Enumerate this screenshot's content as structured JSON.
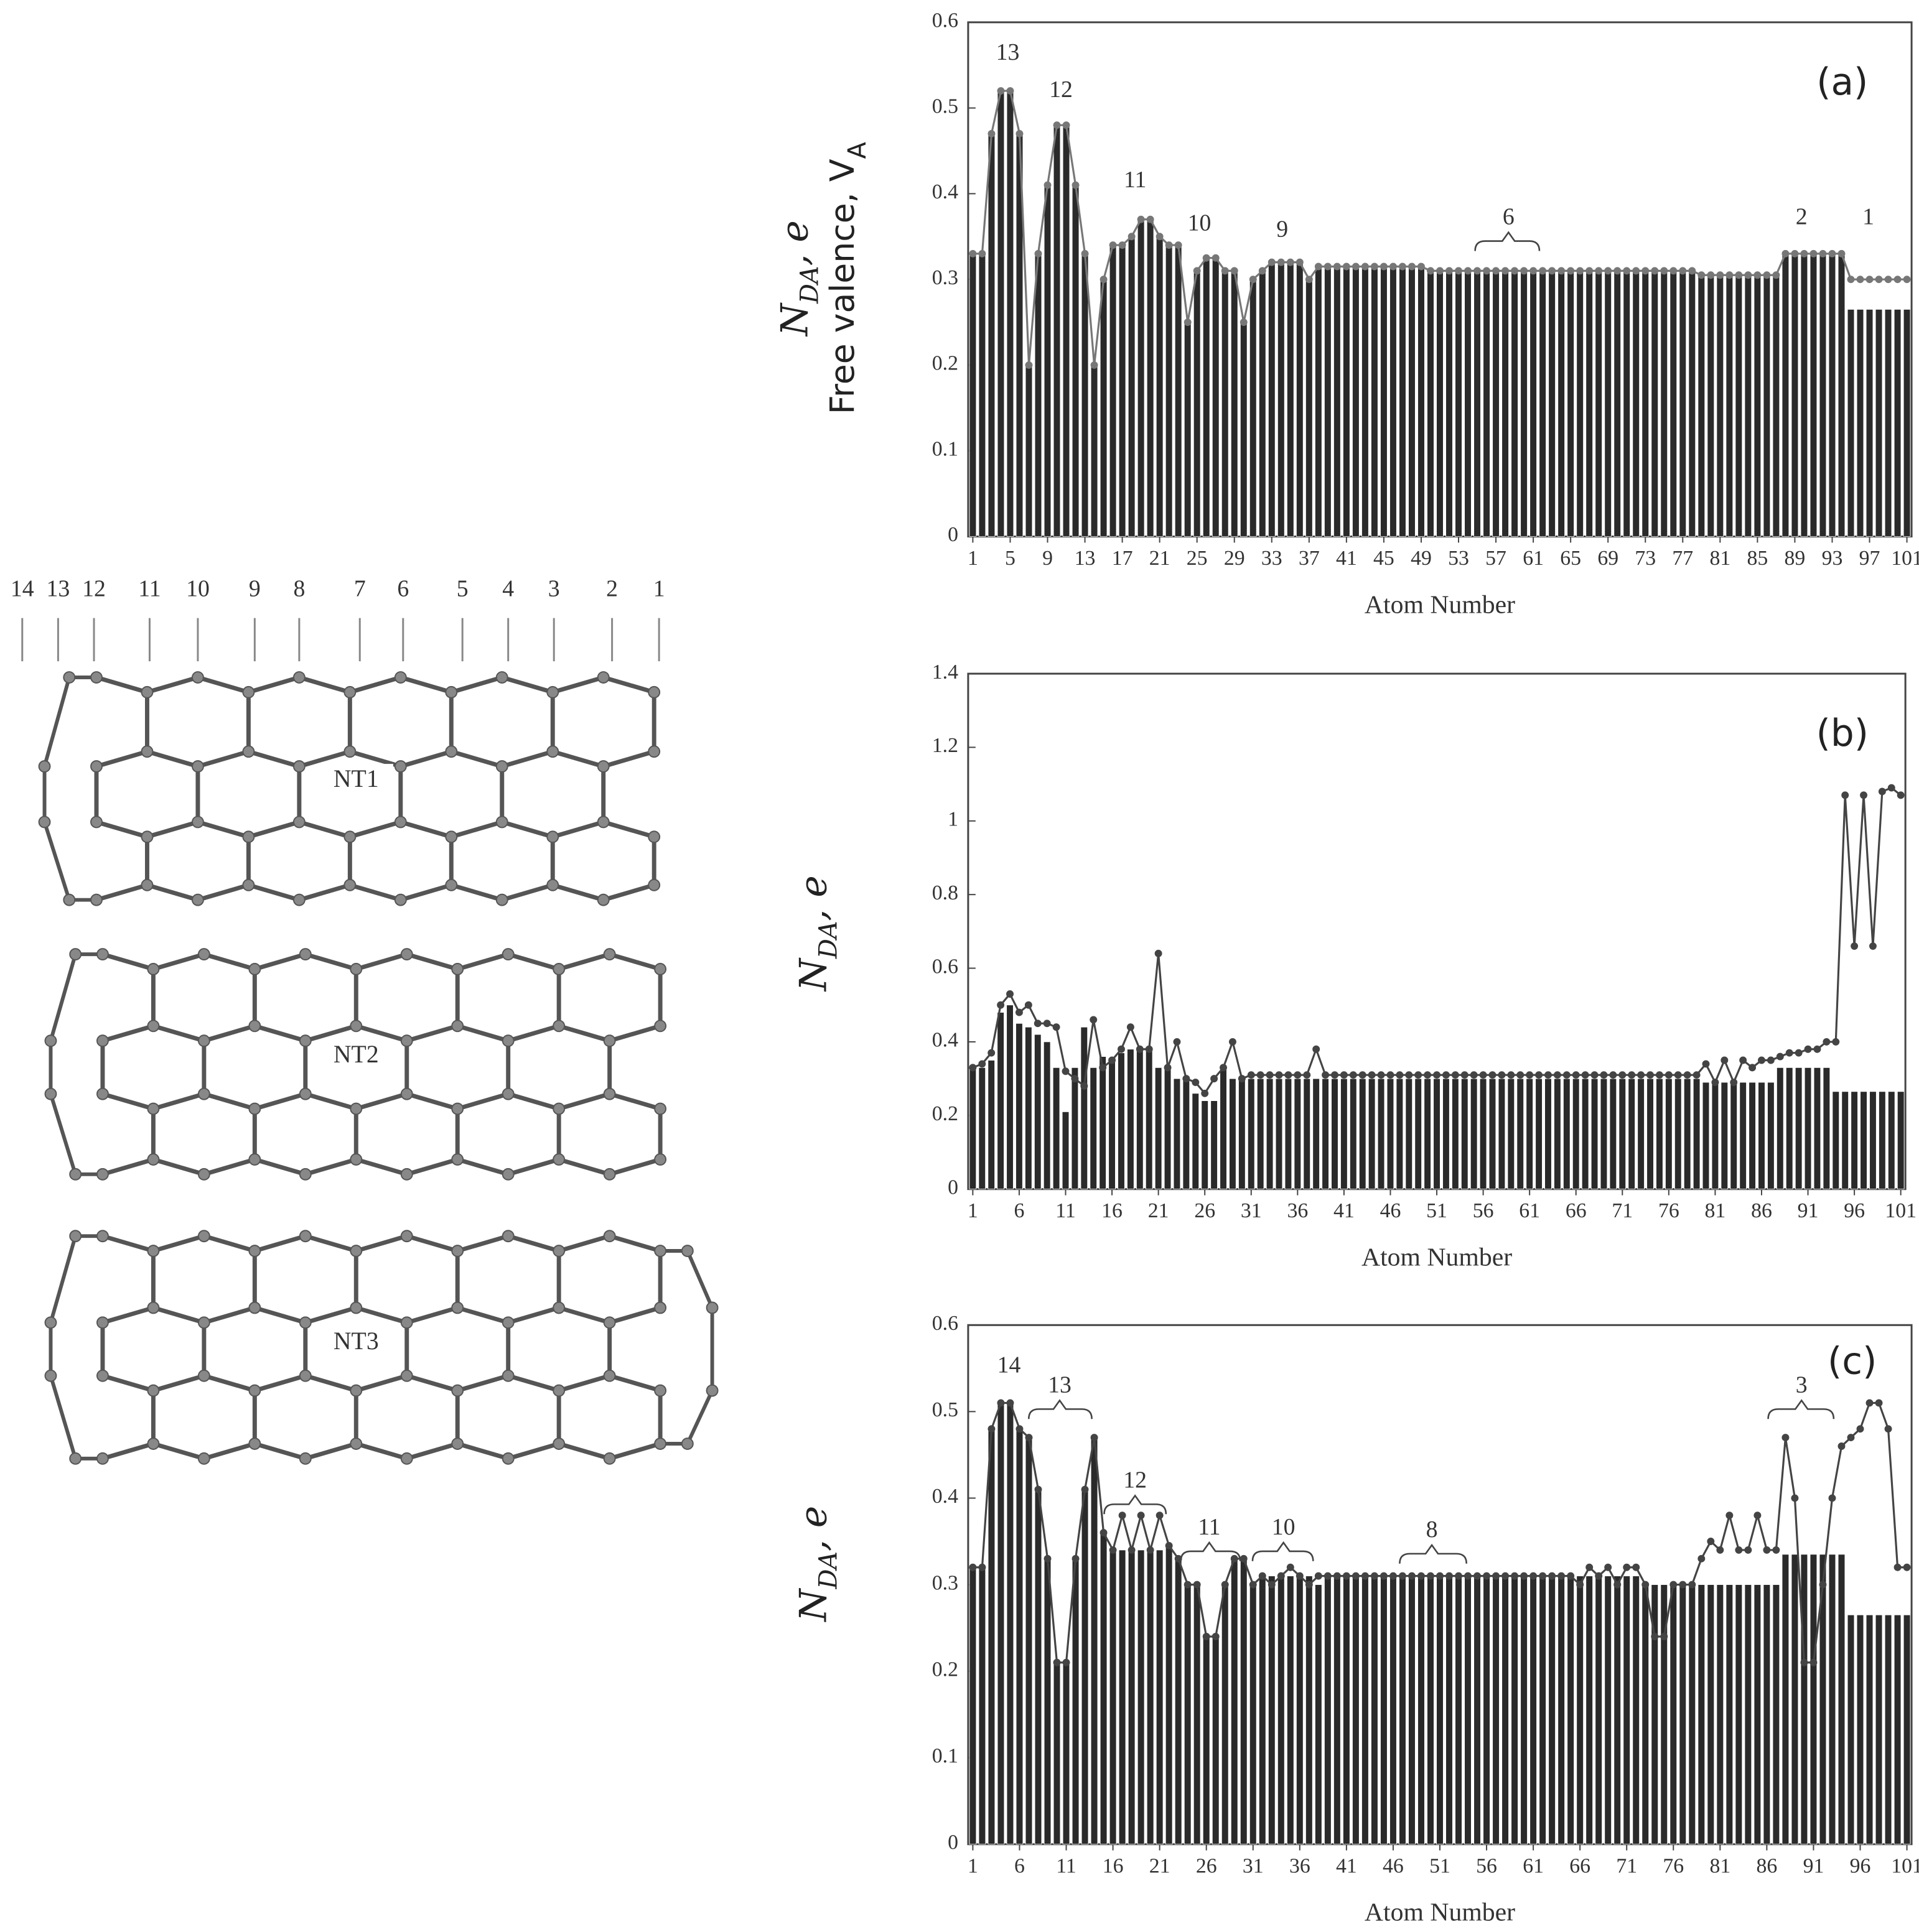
{
  "chart_data": [
    {
      "type": "bar",
      "panel_label": "(a)",
      "y_label": {
        "text": "N",
        "sub": "DA",
        "tail": ", e"
      },
      "y_label2": {
        "text": "Free valence, V",
        "sub": "A"
      },
      "x_label": "Atom Number",
      "annotations": [
        "13",
        "12",
        "11",
        "10",
        "9",
        "6",
        "2",
        "1"
      ],
      "xlim": [
        0.5,
        101.5
      ],
      "ylim": [
        0,
        0.6
      ],
      "xticks": [
        1,
        5,
        9,
        13,
        17,
        21,
        25,
        29,
        33,
        37,
        41,
        45,
        49,
        53,
        57,
        61,
        65,
        69,
        73,
        77,
        81,
        85,
        89,
        93,
        97,
        101
      ],
      "yticks": [
        0,
        0.1,
        0.2,
        0.3,
        0.4,
        0.5,
        0.6
      ],
      "x": [
        1,
        2,
        3,
        4,
        5,
        6,
        7,
        8,
        9,
        10,
        11,
        12,
        13,
        14,
        15,
        16,
        17,
        18,
        19,
        20,
        21,
        22,
        23,
        24,
        25,
        26,
        27,
        28,
        29,
        30,
        31,
        32,
        33,
        34,
        35,
        36,
        37,
        38,
        39,
        40,
        41,
        42,
        43,
        44,
        45,
        46,
        47,
        48,
        49,
        50,
        51,
        52,
        53,
        54,
        55,
        56,
        57,
        58,
        59,
        60,
        61,
        62,
        63,
        64,
        65,
        66,
        67,
        68,
        69,
        70,
        71,
        72,
        73,
        74,
        75,
        76,
        77,
        78,
        79,
        80,
        81,
        82,
        83,
        84,
        85,
        86,
        87,
        88,
        89,
        90,
        91,
        92,
        93,
        94,
        95,
        96,
        97,
        98,
        99,
        100,
        101
      ],
      "series": [
        {
          "type": "bar",
          "color": "#2a2a2a",
          "values": [
            0.33,
            0.33,
            0.47,
            0.52,
            0.52,
            0.47,
            0.2,
            0.33,
            0.41,
            0.48,
            0.48,
            0.41,
            0.33,
            0.2,
            0.3,
            0.34,
            0.34,
            0.35,
            0.37,
            0.37,
            0.35,
            0.34,
            0.34,
            0.25,
            0.31,
            0.325,
            0.325,
            0.31,
            0.31,
            0.25,
            0.3,
            0.31,
            0.32,
            0.32,
            0.32,
            0.32,
            0.3,
            0.315,
            0.315,
            0.315,
            0.315,
            0.315,
            0.315,
            0.315,
            0.315,
            0.315,
            0.315,
            0.315,
            0.315,
            0.31,
            0.31,
            0.31,
            0.31,
            0.31,
            0.31,
            0.31,
            0.31,
            0.31,
            0.31,
            0.31,
            0.31,
            0.31,
            0.31,
            0.31,
            0.31,
            0.31,
            0.31,
            0.31,
            0.31,
            0.31,
            0.31,
            0.31,
            0.31,
            0.31,
            0.31,
            0.31,
            0.31,
            0.31,
            0.305,
            0.305,
            0.305,
            0.305,
            0.305,
            0.305,
            0.305,
            0.305,
            0.305,
            0.33,
            0.33,
            0.33,
            0.33,
            0.33,
            0.33,
            0.33,
            0.265,
            0.265,
            0.265,
            0.265,
            0.265,
            0.265,
            0.265
          ]
        },
        {
          "type": "line",
          "color": "#777777",
          "values": [
            0.33,
            0.33,
            0.47,
            0.52,
            0.52,
            0.47,
            0.2,
            0.33,
            0.41,
            0.48,
            0.48,
            0.41,
            0.33,
            0.2,
            0.3,
            0.34,
            0.34,
            0.35,
            0.37,
            0.37,
            0.35,
            0.34,
            0.34,
            0.25,
            0.31,
            0.325,
            0.325,
            0.31,
            0.31,
            0.25,
            0.3,
            0.31,
            0.32,
            0.32,
            0.32,
            0.32,
            0.3,
            0.315,
            0.315,
            0.315,
            0.315,
            0.315,
            0.315,
            0.315,
            0.315,
            0.315,
            0.315,
            0.315,
            0.315,
            0.31,
            0.31,
            0.31,
            0.31,
            0.31,
            0.31,
            0.31,
            0.31,
            0.31,
            0.31,
            0.31,
            0.31,
            0.31,
            0.31,
            0.31,
            0.31,
            0.31,
            0.31,
            0.31,
            0.31,
            0.31,
            0.31,
            0.31,
            0.31,
            0.31,
            0.31,
            0.31,
            0.31,
            0.31,
            0.305,
            0.305,
            0.305,
            0.305,
            0.305,
            0.305,
            0.305,
            0.305,
            0.305,
            0.33,
            0.33,
            0.33,
            0.33,
            0.33,
            0.33,
            0.33,
            0.3,
            0.3,
            0.3,
            0.3,
            0.3,
            0.3,
            0.3
          ]
        }
      ]
    },
    {
      "type": "bar",
      "panel_label": "(b)",
      "y_label": {
        "text": "N",
        "sub": "DA",
        "tail": ", e"
      },
      "x_label": "Atom Number",
      "xlim": [
        0.5,
        101.5
      ],
      "ylim": [
        0,
        1.4
      ],
      "xticks": [
        1,
        6,
        11,
        16,
        21,
        26,
        31,
        36,
        41,
        46,
        51,
        56,
        61,
        66,
        71,
        76,
        81,
        86,
        91,
        96,
        101
      ],
      "yticks": [
        0,
        0.2,
        0.4,
        0.6,
        0.8,
        1,
        1.2,
        1.4
      ],
      "x": [
        1,
        2,
        3,
        4,
        5,
        6,
        7,
        8,
        9,
        10,
        11,
        12,
        13,
        14,
        15,
        16,
        17,
        18,
        19,
        20,
        21,
        22,
        23,
        24,
        25,
        26,
        27,
        28,
        29,
        30,
        31,
        32,
        33,
        34,
        35,
        36,
        37,
        38,
        39,
        40,
        41,
        42,
        43,
        44,
        45,
        46,
        47,
        48,
        49,
        50,
        51,
        52,
        53,
        54,
        55,
        56,
        57,
        58,
        59,
        60,
        61,
        62,
        63,
        64,
        65,
        66,
        67,
        68,
        69,
        70,
        71,
        72,
        73,
        74,
        75,
        76,
        77,
        78,
        79,
        80,
        81,
        82,
        83,
        84,
        85,
        86,
        87,
        88,
        89,
        90,
        91,
        92,
        93,
        94,
        95,
        96,
        97,
        98,
        99,
        100,
        101
      ],
      "series": [
        {
          "type": "bar",
          "color": "#2a2a2a",
          "values": [
            0.33,
            0.33,
            0.35,
            0.48,
            0.5,
            0.45,
            0.44,
            0.42,
            0.4,
            0.33,
            0.21,
            0.33,
            0.44,
            0.33,
            0.36,
            0.35,
            0.37,
            0.38,
            0.38,
            0.38,
            0.33,
            0.33,
            0.3,
            0.3,
            0.26,
            0.24,
            0.24,
            0.33,
            0.3,
            0.3,
            0.3,
            0.3,
            0.3,
            0.3,
            0.3,
            0.3,
            0.3,
            0.3,
            0.3,
            0.3,
            0.3,
            0.3,
            0.3,
            0.3,
            0.3,
            0.3,
            0.3,
            0.3,
            0.3,
            0.3,
            0.3,
            0.3,
            0.3,
            0.3,
            0.3,
            0.3,
            0.3,
            0.3,
            0.3,
            0.3,
            0.3,
            0.3,
            0.3,
            0.3,
            0.3,
            0.3,
            0.3,
            0.3,
            0.3,
            0.3,
            0.3,
            0.3,
            0.3,
            0.3,
            0.3,
            0.3,
            0.3,
            0.3,
            0.3,
            0.29,
            0.29,
            0.29,
            0.29,
            0.29,
            0.29,
            0.29,
            0.29,
            0.33,
            0.33,
            0.33,
            0.33,
            0.33,
            0.33,
            0.265,
            0.265,
            0.265,
            0.265,
            0.265,
            0.265,
            0.265,
            0.265
          ]
        },
        {
          "type": "line",
          "color": "#444444",
          "values": [
            0.33,
            0.34,
            0.37,
            0.5,
            0.53,
            0.48,
            0.5,
            0.45,
            0.45,
            0.44,
            0.32,
            0.3,
            0.28,
            0.46,
            0.33,
            0.35,
            0.38,
            0.44,
            0.38,
            0.38,
            0.64,
            0.33,
            0.4,
            0.3,
            0.29,
            0.26,
            0.3,
            0.33,
            0.4,
            0.3,
            0.31,
            0.31,
            0.31,
            0.31,
            0.31,
            0.31,
            0.31,
            0.38,
            0.31,
            0.31,
            0.31,
            0.31,
            0.31,
            0.31,
            0.31,
            0.31,
            0.31,
            0.31,
            0.31,
            0.31,
            0.31,
            0.31,
            0.31,
            0.31,
            0.31,
            0.31,
            0.31,
            0.31,
            0.31,
            0.31,
            0.31,
            0.31,
            0.31,
            0.31,
            0.31,
            0.31,
            0.31,
            0.31,
            0.31,
            0.31,
            0.31,
            0.31,
            0.31,
            0.31,
            0.31,
            0.31,
            0.31,
            0.31,
            0.31,
            0.34,
            0.29,
            0.35,
            0.29,
            0.35,
            0.33,
            0.35,
            0.35,
            0.36,
            0.37,
            0.37,
            0.38,
            0.38,
            0.4,
            0.4,
            1.07,
            0.66,
            1.07,
            0.66,
            1.08,
            1.09,
            1.07
          ]
        }
      ]
    },
    {
      "type": "bar",
      "panel_label": "(c)",
      "y_label": {
        "text": "N",
        "sub": "DA",
        "tail": ", e"
      },
      "x_label": "Atom Number",
      "annotations": [
        "14",
        "13",
        "12",
        "11",
        "10",
        "8",
        "3"
      ],
      "xlim": [
        0.5,
        101.5
      ],
      "ylim": [
        0,
        0.6
      ],
      "xticks": [
        1,
        6,
        11,
        16,
        21,
        26,
        31,
        36,
        41,
        46,
        51,
        56,
        61,
        66,
        71,
        76,
        81,
        86,
        91,
        96,
        101
      ],
      "yticks": [
        0,
        0.1,
        0.2,
        0.3,
        0.4,
        0.5,
        0.6
      ],
      "x": [
        1,
        2,
        3,
        4,
        5,
        6,
        7,
        8,
        9,
        10,
        11,
        12,
        13,
        14,
        15,
        16,
        17,
        18,
        19,
        20,
        21,
        22,
        23,
        24,
        25,
        26,
        27,
        28,
        29,
        30,
        31,
        32,
        33,
        34,
        35,
        36,
        37,
        38,
        39,
        40,
        41,
        42,
        43,
        44,
        45,
        46,
        47,
        48,
        49,
        50,
        51,
        52,
        53,
        54,
        55,
        56,
        57,
        58,
        59,
        60,
        61,
        62,
        63,
        64,
        65,
        66,
        67,
        68,
        69,
        70,
        71,
        72,
        73,
        74,
        75,
        76,
        77,
        78,
        79,
        80,
        81,
        82,
        83,
        84,
        85,
        86,
        87,
        88,
        89,
        90,
        91,
        92,
        93,
        94,
        95,
        96,
        97,
        98,
        99,
        100,
        101
      ],
      "series": [
        {
          "type": "bar",
          "color": "#2a2a2a",
          "values": [
            0.32,
            0.32,
            0.48,
            0.51,
            0.51,
            0.48,
            0.47,
            0.41,
            0.33,
            0.21,
            0.21,
            0.33,
            0.41,
            0.47,
            0.36,
            0.34,
            0.34,
            0.34,
            0.34,
            0.34,
            0.34,
            0.345,
            0.33,
            0.3,
            0.3,
            0.24,
            0.24,
            0.3,
            0.33,
            0.33,
            0.3,
            0.31,
            0.31,
            0.31,
            0.31,
            0.31,
            0.31,
            0.3,
            0.31,
            0.31,
            0.31,
            0.31,
            0.31,
            0.31,
            0.31,
            0.31,
            0.31,
            0.31,
            0.31,
            0.31,
            0.31,
            0.31,
            0.31,
            0.31,
            0.31,
            0.31,
            0.31,
            0.31,
            0.31,
            0.31,
            0.31,
            0.31,
            0.31,
            0.31,
            0.31,
            0.31,
            0.31,
            0.31,
            0.31,
            0.31,
            0.31,
            0.31,
            0.3,
            0.3,
            0.3,
            0.3,
            0.3,
            0.3,
            0.3,
            0.3,
            0.3,
            0.3,
            0.3,
            0.3,
            0.3,
            0.3,
            0.3,
            0.335,
            0.335,
            0.335,
            0.335,
            0.335,
            0.335,
            0.335,
            0.265,
            0.265,
            0.265,
            0.265,
            0.265,
            0.265,
            0.265
          ]
        },
        {
          "type": "line",
          "color": "#444444",
          "values": [
            0.32,
            0.32,
            0.48,
            0.51,
            0.51,
            0.48,
            0.47,
            0.41,
            0.33,
            0.21,
            0.21,
            0.33,
            0.41,
            0.47,
            0.36,
            0.34,
            0.38,
            0.34,
            0.38,
            0.34,
            0.38,
            0.345,
            0.33,
            0.3,
            0.3,
            0.24,
            0.24,
            0.3,
            0.33,
            0.33,
            0.3,
            0.31,
            0.3,
            0.31,
            0.32,
            0.31,
            0.3,
            0.31,
            0.31,
            0.31,
            0.31,
            0.31,
            0.31,
            0.31,
            0.31,
            0.31,
            0.31,
            0.31,
            0.31,
            0.31,
            0.31,
            0.31,
            0.31,
            0.31,
            0.31,
            0.31,
            0.31,
            0.31,
            0.31,
            0.31,
            0.31,
            0.31,
            0.31,
            0.31,
            0.31,
            0.3,
            0.32,
            0.31,
            0.32,
            0.3,
            0.32,
            0.32,
            0.3,
            0.24,
            0.24,
            0.3,
            0.3,
            0.3,
            0.33,
            0.35,
            0.34,
            0.38,
            0.34,
            0.34,
            0.38,
            0.34,
            0.34,
            0.47,
            0.4,
            0.21,
            0.21,
            0.3,
            0.4,
            0.46,
            0.47,
            0.48,
            0.51,
            0.51,
            0.48,
            0.32,
            0.32
          ]
        }
      ]
    }
  ],
  "structure": {
    "ring_numbers": [
      14,
      13,
      12,
      11,
      10,
      9,
      8,
      7,
      6,
      5,
      4,
      3,
      2,
      1
    ],
    "tube_labels": [
      "NT1",
      "NT2",
      "NT3"
    ]
  }
}
